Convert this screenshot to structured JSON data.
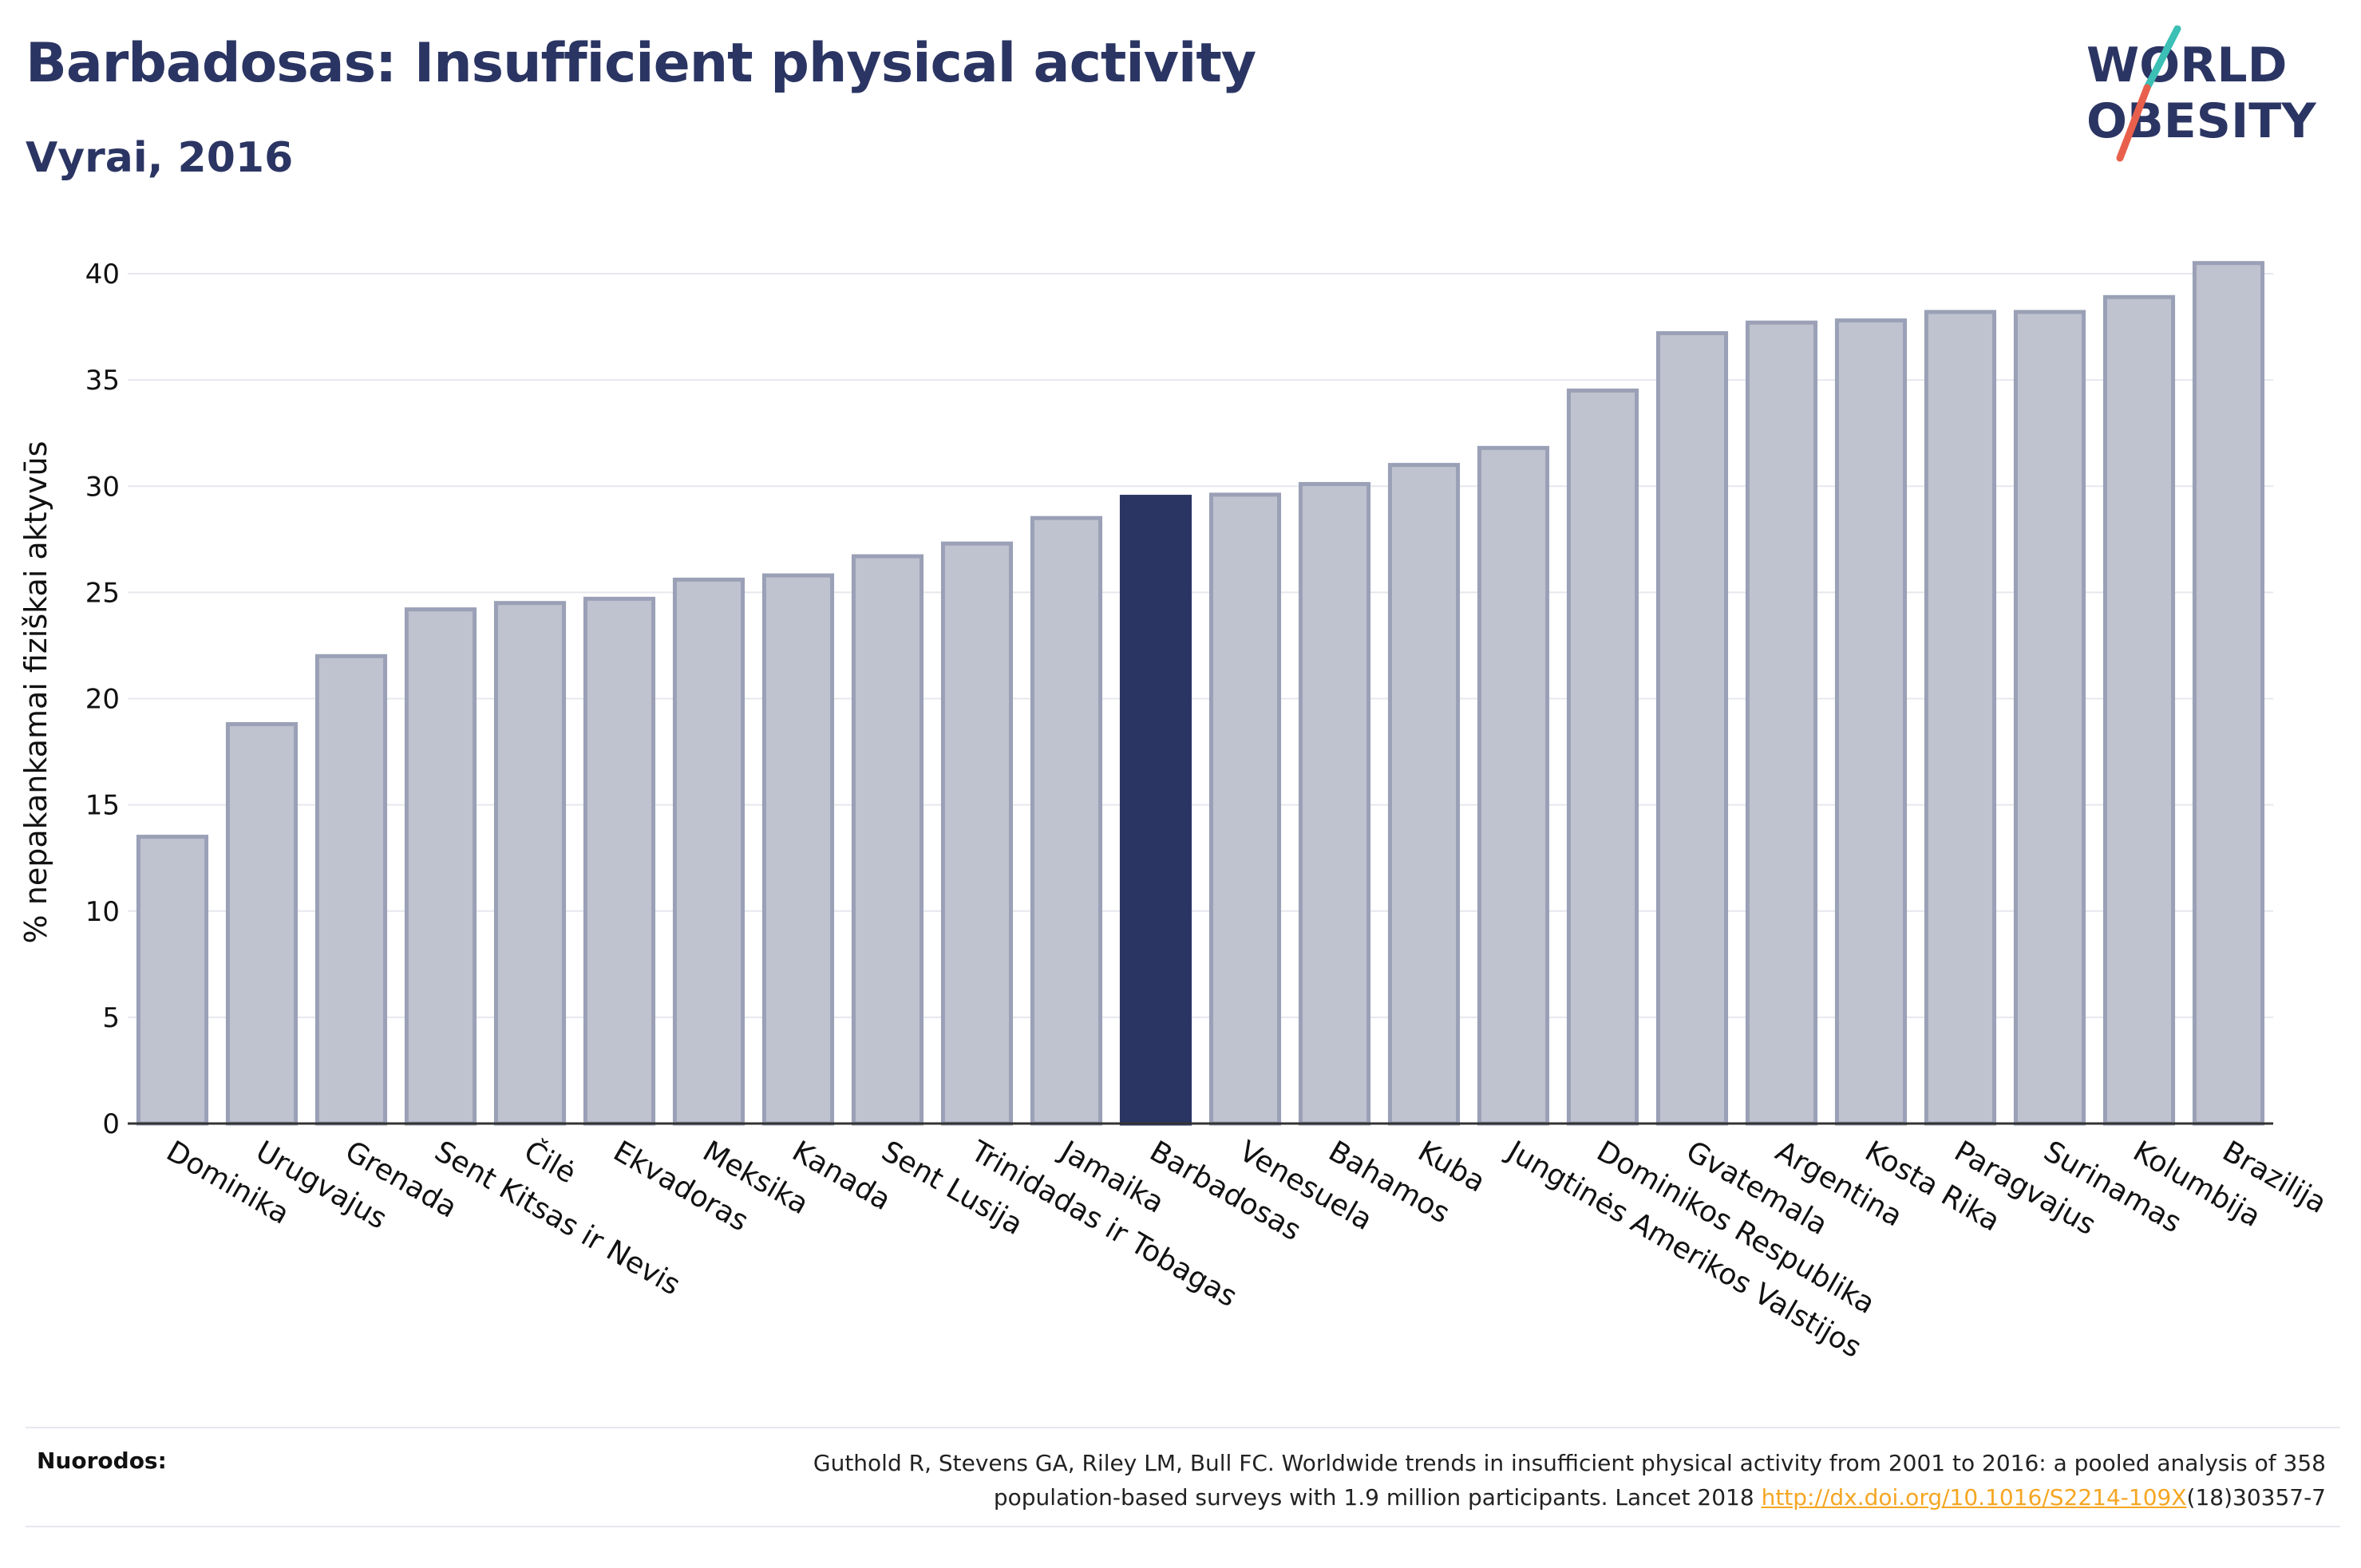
{
  "header": {
    "title": "Barbadosas: Insufficient physical activity",
    "subtitle": "Vyrai, 2016"
  },
  "logo": {
    "line1": "WORLD",
    "line2": "OBESITY",
    "colors": {
      "text": "#2b3563",
      "slash_top": "#3cbfb4",
      "slash_bottom": "#e8604c"
    }
  },
  "chart_data": {
    "type": "bar",
    "title": "",
    "xlabel": "",
    "ylabel": "% nepakankamai fiziškai aktyvūs",
    "ylim": [
      0,
      42
    ],
    "yticks": [
      0,
      5,
      10,
      15,
      20,
      25,
      30,
      35,
      40
    ],
    "grid": true,
    "highlight": "Barbadosas",
    "colors": {
      "bar": "#bfc2cf",
      "bar_border": "#9aa0b6",
      "highlight": "#2b3563",
      "grid": "#e6e8ee",
      "axis": "#333333"
    },
    "categories": [
      "Dominika",
      "Urugvajus",
      "Grenada",
      "Sent Kitsas ir Nevis",
      "Čilė",
      "Ekvadoras",
      "Meksika",
      "Kanada",
      "Sent Lusija",
      "Trinidadas ir Tobagas",
      "Jamaika",
      "Barbadosas",
      "Venesuela",
      "Bahamos",
      "Kuba",
      "Jungtinės Amerikos Valstijos",
      "Dominikos Respublika",
      "Gvatemala",
      "Argentina",
      "Kosta Rika",
      "Paragvajus",
      "Surinamas",
      "Kolumbija",
      "Brazilija"
    ],
    "values": [
      13.5,
      18.8,
      22.0,
      24.2,
      24.5,
      24.7,
      25.6,
      25.8,
      26.7,
      27.3,
      28.5,
      29.5,
      29.6,
      30.1,
      31.0,
      31.8,
      34.5,
      37.2,
      37.7,
      37.8,
      38.2,
      38.2,
      38.9,
      40.5
    ]
  },
  "footer": {
    "sources_label": "Nuorodos:",
    "citation_line1": "Guthold R, Stevens GA, Riley LM, Bull FC. Worldwide trends in insufficient physical activity from 2001 to 2016: a pooled analysis of 358",
    "citation_line2_pre": "population-based surveys with 1.9 million participants. Lancet 2018 ",
    "citation_link": "http://dx.doi.org/10.1016/S2214-109X",
    "citation_line2_post": "(18)30357-7"
  }
}
